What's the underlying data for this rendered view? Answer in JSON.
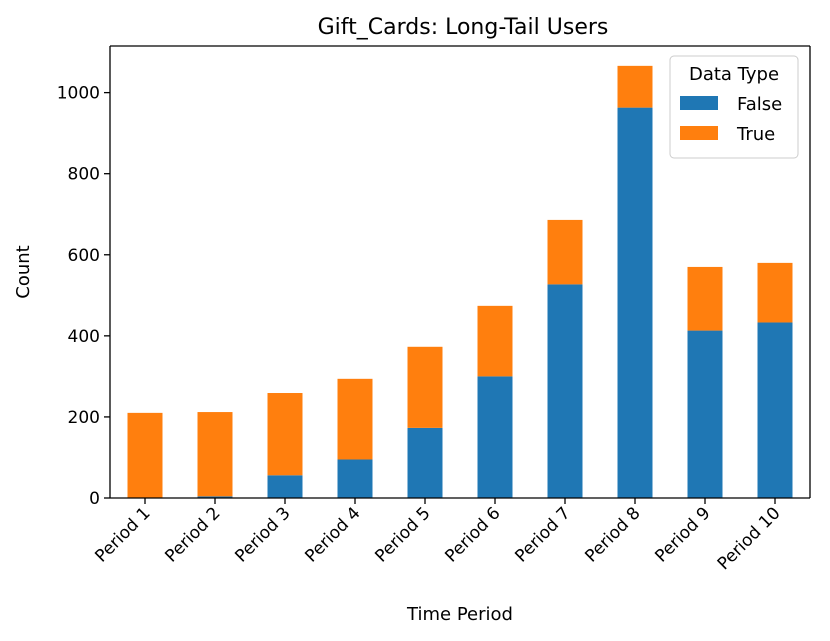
{
  "chart_data": {
    "type": "bar",
    "stacked": true,
    "title": "Gift_Cards: Long-Tail Users",
    "xlabel": "Time Period",
    "ylabel": "Count",
    "categories": [
      "Period 1",
      "Period 2",
      "Period 3",
      "Period 4",
      "Period 5",
      "Period 6",
      "Period 7",
      "Period 8",
      "Period 9",
      "Period 10"
    ],
    "series": [
      {
        "name": "False",
        "color": "#1f77b4",
        "values": [
          0,
          4,
          56,
          95,
          173,
          300,
          527,
          963,
          413,
          433
        ]
      },
      {
        "name": "True",
        "color": "#ff7f0e",
        "values": [
          210,
          208,
          203,
          199,
          200,
          174,
          159,
          103,
          157,
          147
        ]
      }
    ],
    "ylim": [
      0,
      1115
    ],
    "yticks": [
      0,
      200,
      400,
      600,
      800,
      1000
    ],
    "legend": {
      "title": "Data Type",
      "placement": "top-right"
    },
    "grid": false
  }
}
